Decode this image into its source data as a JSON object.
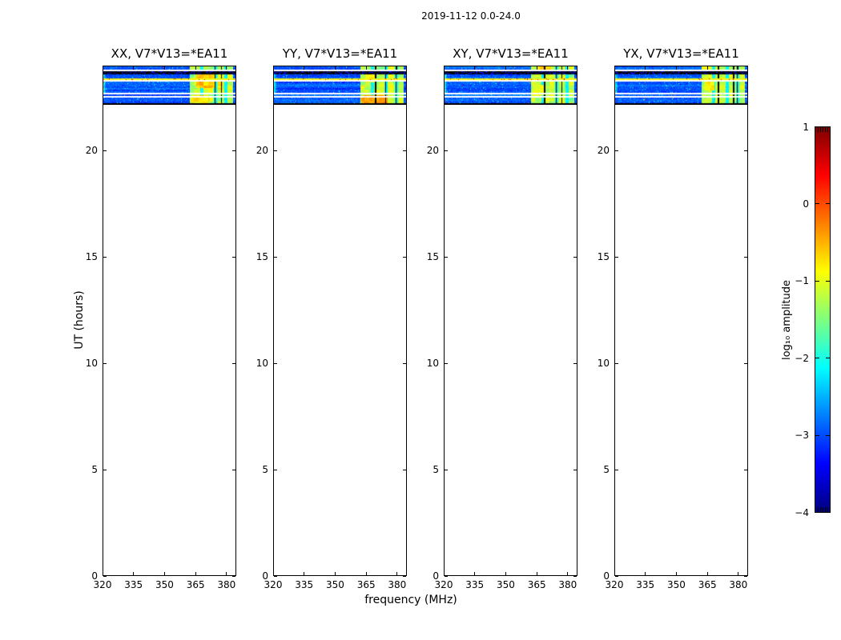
{
  "figure": {
    "background": "#ffffff",
    "spine_color": "#000000"
  },
  "chart_data": {
    "type": "heatmap",
    "title": "2019-11-12 0.0-24.0",
    "x": {
      "label": "frequency (MHz)",
      "lim": [
        320,
        384.7
      ],
      "ticks": [
        320,
        335,
        350,
        365,
        380
      ]
    },
    "y": {
      "label": "UT (hours)",
      "lim": [
        0,
        24
      ],
      "ticks": [
        0,
        5,
        10,
        15,
        20
      ]
    },
    "colorbar": {
      "label": "log₁₀ amplitude",
      "colormap": "jet",
      "range": [
        -4,
        1
      ],
      "ticks": [
        1,
        0,
        -1,
        -2,
        -3,
        -4
      ]
    },
    "panels": [
      {
        "id": "XX",
        "title": "XX, V7*V13=*EA11",
        "hotspots": [
          {
            "ut": [
              22.95,
              23.81
            ],
            "mhz": [
              365.5,
              374.5
            ],
            "level": -0.62
          },
          {
            "ut": [
              22.23,
              22.62
            ],
            "mhz": [
              363.0,
              371.5
            ],
            "level": -0.8
          }
        ],
        "flagged_mhz": [
          377.6
        ]
      },
      {
        "id": "YY",
        "title": "YY, V7*V13=*EA11",
        "hotspots": [
          {
            "ut": [
              22.12,
              22.6
            ],
            "mhz": [
              362.5,
              375.5
            ],
            "level": -0.38
          },
          {
            "ut": [
              23.2,
              23.8
            ],
            "mhz": [
              364.5,
              370.0
            ],
            "level": -0.75
          }
        ],
        "flagged_mhz": [
          369.6,
          374.5
        ]
      },
      {
        "id": "XY",
        "title": "XY, V7*V13=*EA11",
        "hotspots": [
          {
            "ut": [
              23.65,
              24.0
            ],
            "mhz": [
              365.5,
              372.0
            ],
            "level": -0.6
          },
          {
            "ut": [
              22.6,
              23.1
            ],
            "mhz": [
              363.0,
              369.0
            ],
            "level": -0.95
          }
        ],
        "flagged_mhz": [
          368.9,
          377.2
        ]
      },
      {
        "id": "YX",
        "title": "YX, V7*V13=*EA11",
        "hotspots": [
          {
            "ut": [
              22.85,
              23.3
            ],
            "mhz": [
              363.5,
              368.5
            ],
            "level": -0.9
          }
        ],
        "flagged_mhz": [
          370.4,
          377.8
        ]
      }
    ],
    "data": {
      "occupied_ut": [
        22.15,
        24.0
      ],
      "background_level_log10": -2.95,
      "rfi_band_mhz": [
        362.4,
        383.2
      ],
      "rfi_band_level_log10": -1.2,
      "band_gap_mhz": [
        368.0,
        374.5,
        379.6
      ],
      "narrowband_line": {
        "ut": [
          23.335,
          23.405
        ],
        "level_log10": -0.9
      },
      "blank_rows_ut": [
        [
          23.73,
          23.795
        ],
        [
          23.265,
          23.325
        ],
        [
          22.655,
          22.715
        ],
        [
          22.5,
          22.585
        ]
      ],
      "flagged_rows_ut": [
        [
          23.585,
          23.72
        ],
        [
          22.12,
          22.22
        ]
      ],
      "edge_streak_mhz": [
        320.0,
        321.8
      ]
    }
  }
}
